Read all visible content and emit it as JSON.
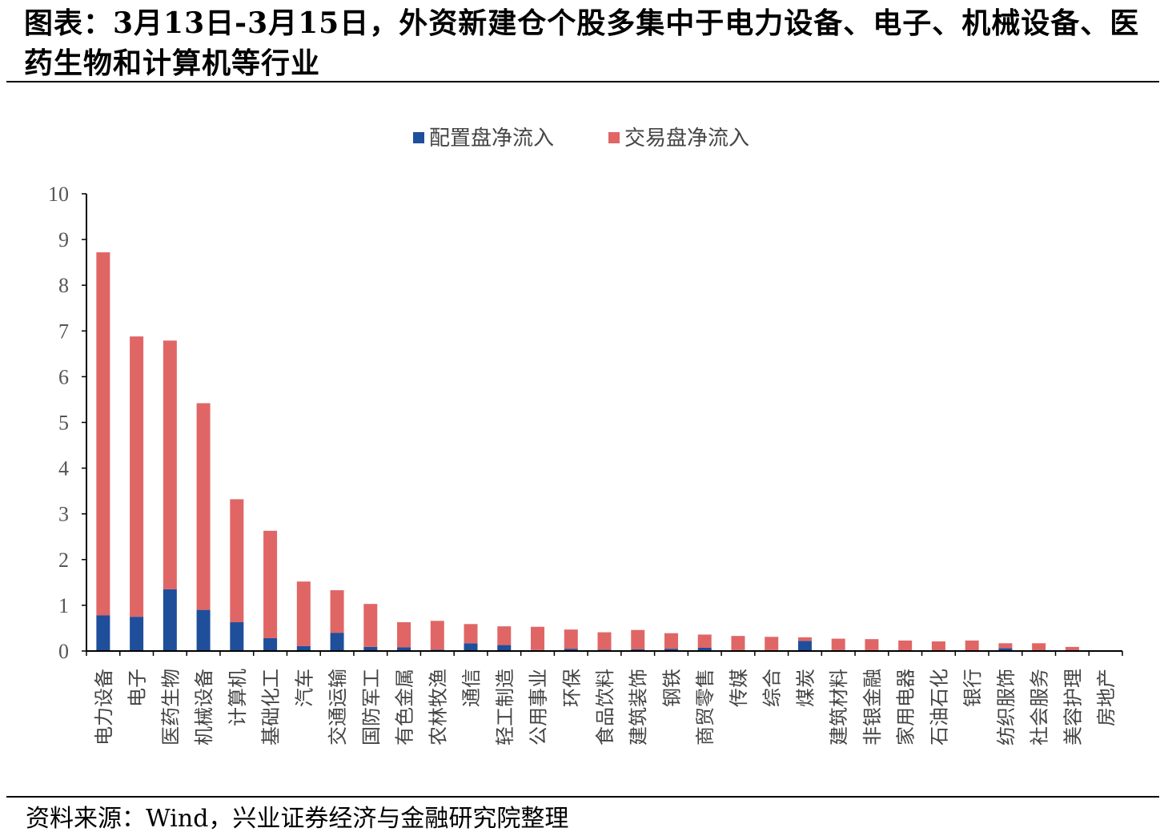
{
  "title": "图表：3月13日-3月15日，外资新建仓个股多集中于电力设备、电子、机械设备、医药生物和计算机等行业",
  "source": "资料来源：Wind，兴业证券经济与金融研究院整理",
  "colors": {
    "series_1": "#1f4e9b",
    "series_2": "#e06666",
    "axis": "#000000"
  },
  "chart_data": {
    "type": "bar",
    "stacked": true,
    "categories": [
      "电力设备",
      "电子",
      "医药生物",
      "机械设备",
      "计算机",
      "基础化工",
      "汽车",
      "交通运输",
      "国防军工",
      "有色金属",
      "农林牧渔",
      "通信",
      "轻工制造",
      "公用事业",
      "环保",
      "食品饮料",
      "建筑装饰",
      "钢铁",
      "商贸零售",
      "传媒",
      "综合",
      "煤炭",
      "建筑材料",
      "非银金融",
      "家用电器",
      "石油石化",
      "银行",
      "纺织服饰",
      "社会服务",
      "美容护理",
      "房地产"
    ],
    "series": [
      {
        "name": "配置盘净流入",
        "values": [
          0.78,
          0.75,
          1.35,
          0.9,
          0.63,
          0.28,
          0.11,
          0.4,
          0.09,
          0.08,
          0.03,
          0.17,
          0.13,
          0.02,
          0.05,
          0.03,
          0.04,
          0.05,
          0.07,
          0.02,
          0.02,
          0.22,
          0.02,
          0.02,
          0.01,
          0.01,
          0.01,
          0.06,
          0.01,
          0.01,
          0.0
        ]
      },
      {
        "name": "交易盘净流入",
        "values": [
          7.94,
          6.13,
          5.44,
          4.52,
          2.69,
          2.35,
          1.41,
          0.93,
          0.94,
          0.55,
          0.63,
          0.42,
          0.41,
          0.51,
          0.42,
          0.38,
          0.42,
          0.34,
          0.29,
          0.31,
          0.29,
          0.08,
          0.25,
          0.24,
          0.22,
          0.2,
          0.22,
          0.11,
          0.16,
          0.08,
          0.0
        ]
      }
    ],
    "xlabel": "",
    "ylabel": "",
    "ylim": [
      0,
      10
    ],
    "yticks": [
      0,
      1,
      2,
      3,
      4,
      5,
      6,
      7,
      8,
      9,
      10
    ],
    "legend_position": "top-center",
    "grid": false
  }
}
